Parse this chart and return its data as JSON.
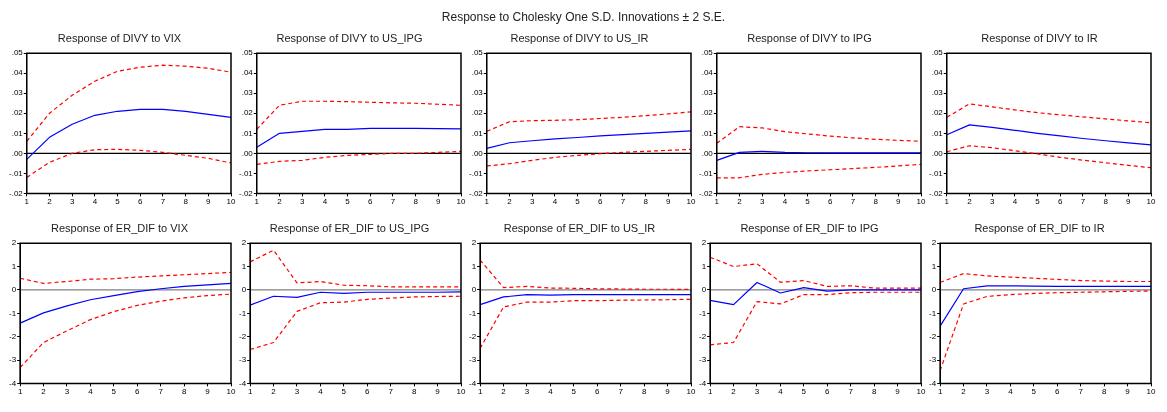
{
  "chart_data": [
    {
      "type": "line",
      "title": "Response of DIVY to VIX",
      "annotations": [
        "Response to Cholesky One S.D. Innovations ± 2 S.E."
      ],
      "categories": [
        "1",
        "2",
        "3",
        "4",
        "5",
        "6",
        "7",
        "8",
        "9",
        "10"
      ],
      "ylim": [
        -0.02,
        0.05
      ],
      "yticks": [
        {
          "value": -0.02,
          "label": "-.02"
        },
        {
          "value": -0.01,
          "label": "-.01"
        },
        {
          "value": 0,
          "label": ".00"
        },
        {
          "value": 0.01,
          "label": ".01"
        },
        {
          "value": 0.02,
          "label": ".02"
        },
        {
          "value": 0.03,
          "label": ".03"
        },
        {
          "value": 0.04,
          "label": ".04"
        },
        {
          "value": 0.05,
          "label": ".05"
        }
      ],
      "grid": false,
      "legend": false,
      "marker": "none",
      "ref_lines": [
        {
          "axis": "y",
          "value": 0,
          "color": "#000000"
        }
      ],
      "series": [
        {
          "color": "#0000ff",
          "line_style": "solid",
          "values": [
            -0.003,
            0.008,
            0.0145,
            0.019,
            0.021,
            0.022,
            0.022,
            0.021,
            0.0195,
            0.018
          ]
        },
        {
          "color": "#ff0000",
          "line_style": "dashed",
          "values": [
            0.006,
            0.02,
            0.029,
            0.036,
            0.041,
            0.043,
            0.044,
            0.0435,
            0.0425,
            0.0405
          ]
        },
        {
          "color": "#ff0000",
          "line_style": "dashed",
          "values": [
            -0.012,
            -0.0045,
            0.0,
            0.0018,
            0.002,
            0.0015,
            0.0005,
            -0.001,
            -0.0025,
            -0.0048
          ]
        }
      ]
    },
    {
      "type": "line",
      "title": "Response of DIVY to US_IPG",
      "categories": [
        "1",
        "2",
        "3",
        "4",
        "5",
        "6",
        "7",
        "8",
        "9",
        "10"
      ],
      "ylim": [
        -0.02,
        0.05
      ],
      "yticks": [
        {
          "value": -0.02,
          "label": "-.02"
        },
        {
          "value": -0.01,
          "label": "-.01"
        },
        {
          "value": 0,
          "label": ".00"
        },
        {
          "value": 0.01,
          "label": ".01"
        },
        {
          "value": 0.02,
          "label": ".02"
        },
        {
          "value": 0.03,
          "label": ".03"
        },
        {
          "value": 0.04,
          "label": ".04"
        },
        {
          "value": 0.05,
          "label": ".05"
        }
      ],
      "grid": false,
      "legend": false,
      "marker": "none",
      "ref_lines": [
        {
          "axis": "y",
          "value": 0,
          "color": "#000000"
        }
      ],
      "series": [
        {
          "color": "#0000ff",
          "line_style": "solid",
          "values": [
            0.003,
            0.01,
            0.011,
            0.012,
            0.012,
            0.0125,
            0.0125,
            0.0125,
            0.0123,
            0.0122
          ]
        },
        {
          "color": "#ff0000",
          "line_style": "dashed",
          "values": [
            0.012,
            0.024,
            0.026,
            0.026,
            0.0258,
            0.0255,
            0.0252,
            0.025,
            0.0245,
            0.024
          ]
        },
        {
          "color": "#ff0000",
          "line_style": "dashed",
          "values": [
            -0.0055,
            -0.004,
            -0.0035,
            -0.002,
            -0.001,
            -0.0005,
            0.0,
            0.0,
            0.0005,
            0.001
          ]
        }
      ]
    },
    {
      "type": "line",
      "title": "Response of DIVY to US_IR",
      "categories": [
        "1",
        "2",
        "3",
        "4",
        "5",
        "6",
        "7",
        "8",
        "9",
        "10"
      ],
      "ylim": [
        -0.02,
        0.05
      ],
      "yticks": [
        {
          "value": -0.02,
          "label": "-.02"
        },
        {
          "value": -0.01,
          "label": "-.01"
        },
        {
          "value": 0,
          "label": ".00"
        },
        {
          "value": 0.01,
          "label": ".01"
        },
        {
          "value": 0.02,
          "label": ".02"
        },
        {
          "value": 0.03,
          "label": ".03"
        },
        {
          "value": 0.04,
          "label": ".04"
        },
        {
          "value": 0.05,
          "label": ".05"
        }
      ],
      "grid": false,
      "legend": false,
      "marker": "none",
      "ref_lines": [
        {
          "axis": "y",
          "value": 0,
          "color": "#000000"
        }
      ],
      "series": [
        {
          "color": "#0000ff",
          "line_style": "solid",
          "values": [
            0.0025,
            0.0053,
            0.0063,
            0.0072,
            0.0079,
            0.0087,
            0.0093,
            0.01,
            0.0106,
            0.0112
          ]
        },
        {
          "color": "#ff0000",
          "line_style": "dashed",
          "values": [
            0.011,
            0.0158,
            0.0163,
            0.0165,
            0.0168,
            0.0174,
            0.018,
            0.0188,
            0.0197,
            0.0207
          ]
        },
        {
          "color": "#ff0000",
          "line_style": "dashed",
          "values": [
            -0.0063,
            -0.0052,
            -0.0035,
            -0.002,
            -0.001,
            -0.0002,
            0.0005,
            0.001,
            0.0015,
            0.002
          ]
        }
      ]
    },
    {
      "type": "line",
      "title": "Response of DIVY to IPG",
      "categories": [
        "1",
        "2",
        "3",
        "4",
        "5",
        "6",
        "7",
        "8",
        "9",
        "10"
      ],
      "ylim": [
        -0.02,
        0.05
      ],
      "yticks": [
        {
          "value": -0.02,
          "label": "-.02"
        },
        {
          "value": -0.01,
          "label": "-.01"
        },
        {
          "value": 0,
          "label": ".00"
        },
        {
          "value": 0.01,
          "label": ".01"
        },
        {
          "value": 0.02,
          "label": ".02"
        },
        {
          "value": 0.03,
          "label": ".03"
        },
        {
          "value": 0.04,
          "label": ".04"
        },
        {
          "value": 0.05,
          "label": ".05"
        }
      ],
      "grid": false,
      "legend": false,
      "marker": "none",
      "ref_lines": [
        {
          "axis": "y",
          "value": 0,
          "color": "#000000"
        }
      ],
      "series": [
        {
          "color": "#0000ff",
          "line_style": "solid",
          "values": [
            -0.0035,
            0.0005,
            0.001,
            0.0005,
            0.0003,
            0.0002,
            0.0002,
            0.0002,
            0.0002,
            0.0002
          ]
        },
        {
          "color": "#ff0000",
          "line_style": "dashed",
          "values": [
            0.005,
            0.0133,
            0.0127,
            0.0108,
            0.0097,
            0.0086,
            0.0077,
            0.007,
            0.0065,
            0.006
          ]
        },
        {
          "color": "#ff0000",
          "line_style": "dashed",
          "values": [
            -0.0122,
            -0.0122,
            -0.0105,
            -0.0095,
            -0.0088,
            -0.0082,
            -0.0076,
            -0.007,
            -0.0063,
            -0.0055
          ]
        }
      ]
    },
    {
      "type": "line",
      "title": "Response of DIVY to IR",
      "categories": [
        "1",
        "2",
        "3",
        "4",
        "5",
        "6",
        "7",
        "8",
        "9",
        "10"
      ],
      "ylim": [
        -0.02,
        0.05
      ],
      "yticks": [
        {
          "value": -0.02,
          "label": "-.02"
        },
        {
          "value": -0.01,
          "label": "-.01"
        },
        {
          "value": 0,
          "label": ".00"
        },
        {
          "value": 0.01,
          "label": ".01"
        },
        {
          "value": 0.02,
          "label": ".02"
        },
        {
          "value": 0.03,
          "label": ".03"
        },
        {
          "value": 0.04,
          "label": ".04"
        },
        {
          "value": 0.05,
          "label": ".05"
        }
      ],
      "grid": false,
      "legend": false,
      "marker": "none",
      "ref_lines": [
        {
          "axis": "y",
          "value": 0,
          "color": "#000000"
        }
      ],
      "series": [
        {
          "color": "#0000ff",
          "line_style": "solid",
          "values": [
            0.0093,
            0.0142,
            0.013,
            0.0115,
            0.01,
            0.0087,
            0.0074,
            0.0063,
            0.0052,
            0.0042
          ]
        },
        {
          "color": "#ff0000",
          "line_style": "dashed",
          "values": [
            0.018,
            0.0247,
            0.0232,
            0.0217,
            0.0203,
            0.0192,
            0.0182,
            0.0172,
            0.0162,
            0.0153
          ]
        },
        {
          "color": "#ff0000",
          "line_style": "dashed",
          "values": [
            0.0008,
            0.0038,
            0.0028,
            0.0013,
            -0.0003,
            -0.002,
            -0.0034,
            -0.0047,
            -0.006,
            -0.0072
          ]
        }
      ]
    },
    {
      "type": "line",
      "title": "Response of ER_DIF to VIX",
      "categories": [
        "1",
        "2",
        "3",
        "4",
        "5",
        "6",
        "7",
        "8",
        "9",
        "10"
      ],
      "ylim": [
        -4,
        2
      ],
      "yticks": [
        -4,
        -3,
        -2,
        -1,
        0,
        1,
        2
      ],
      "grid": false,
      "legend": false,
      "marker": "none",
      "ref_lines": [
        {
          "axis": "y",
          "value": 0,
          "color": "#808080"
        }
      ],
      "series": [
        {
          "color": "#0000ff",
          "line_style": "solid",
          "values": [
            -1.42,
            -0.98,
            -0.68,
            -0.42,
            -0.24,
            -0.07,
            0.05,
            0.15,
            0.22,
            0.28
          ]
        },
        {
          "color": "#ff0000",
          "line_style": "dashed",
          "values": [
            0.5,
            0.28,
            0.36,
            0.46,
            0.48,
            0.55,
            0.6,
            0.65,
            0.7,
            0.75
          ]
        },
        {
          "color": "#ff0000",
          "line_style": "dashed",
          "values": [
            -3.32,
            -2.25,
            -1.75,
            -1.27,
            -0.93,
            -0.66,
            -0.48,
            -0.34,
            -0.24,
            -0.18
          ]
        }
      ]
    },
    {
      "type": "line",
      "title": "Response of ER_DIF to US_IPG",
      "categories": [
        "1",
        "2",
        "3",
        "4",
        "5",
        "6",
        "7",
        "8",
        "9",
        "10"
      ],
      "ylim": [
        -4,
        2
      ],
      "yticks": [
        -4,
        -3,
        -2,
        -1,
        0,
        1,
        2
      ],
      "grid": false,
      "legend": false,
      "marker": "none",
      "ref_lines": [
        {
          "axis": "y",
          "value": 0,
          "color": "#808080"
        }
      ],
      "series": [
        {
          "color": "#0000ff",
          "line_style": "solid",
          "values": [
            -0.65,
            -0.27,
            -0.32,
            -0.1,
            -0.15,
            -0.1,
            -0.1,
            -0.1,
            -0.1,
            -0.08
          ]
        },
        {
          "color": "#ff0000",
          "line_style": "dashed",
          "values": [
            1.2,
            1.7,
            0.3,
            0.36,
            0.2,
            0.18,
            0.13,
            0.13,
            0.13,
            0.13
          ]
        },
        {
          "color": "#ff0000",
          "line_style": "dashed",
          "values": [
            -2.55,
            -2.25,
            -0.92,
            -0.55,
            -0.52,
            -0.4,
            -0.35,
            -0.3,
            -0.28,
            -0.27
          ]
        }
      ]
    },
    {
      "type": "line",
      "title": "Response of ER_DIF to US_IR",
      "categories": [
        "1",
        "2",
        "3",
        "4",
        "5",
        "6",
        "7",
        "8",
        "9",
        "10"
      ],
      "ylim": [
        -4,
        2
      ],
      "yticks": [
        -4,
        -3,
        -2,
        -1,
        0,
        1,
        2
      ],
      "grid": false,
      "legend": false,
      "marker": "none",
      "ref_lines": [
        {
          "axis": "y",
          "value": 0,
          "color": "#808080"
        }
      ],
      "series": [
        {
          "color": "#0000ff",
          "line_style": "solid",
          "values": [
            -0.63,
            -0.3,
            -0.2,
            -0.22,
            -0.2,
            -0.2,
            -0.2,
            -0.2,
            -0.2,
            -0.2
          ]
        },
        {
          "color": "#ff0000",
          "line_style": "dashed",
          "values": [
            1.28,
            0.1,
            0.15,
            0.08,
            0.07,
            0.05,
            0.04,
            0.03,
            0.03,
            0.02
          ]
        },
        {
          "color": "#ff0000",
          "line_style": "dashed",
          "values": [
            -2.5,
            -0.73,
            -0.52,
            -0.52,
            -0.46,
            -0.46,
            -0.44,
            -0.43,
            -0.42,
            -0.4
          ]
        }
      ]
    },
    {
      "type": "line",
      "title": "Response of ER_DIF to IPG",
      "categories": [
        "1",
        "2",
        "3",
        "4",
        "5",
        "6",
        "7",
        "8",
        "9",
        "10"
      ],
      "ylim": [
        -4,
        2
      ],
      "yticks": [
        -4,
        -3,
        -2,
        -1,
        0,
        1,
        2
      ],
      "grid": false,
      "legend": false,
      "marker": "none",
      "ref_lines": [
        {
          "axis": "y",
          "value": 0,
          "color": "#808080"
        }
      ],
      "series": [
        {
          "color": "#0000ff",
          "line_style": "solid",
          "values": [
            -0.45,
            -0.63,
            0.32,
            -0.13,
            0.1,
            -0.05,
            0.0,
            0.0,
            0.0,
            0.0
          ]
        },
        {
          "color": "#ff0000",
          "line_style": "dashed",
          "values": [
            1.4,
            1.0,
            1.12,
            0.33,
            0.4,
            0.15,
            0.18,
            0.08,
            0.08,
            0.08
          ]
        },
        {
          "color": "#ff0000",
          "line_style": "dashed",
          "values": [
            -2.35,
            -2.25,
            -0.5,
            -0.6,
            -0.2,
            -0.2,
            -0.12,
            -0.1,
            -0.1,
            -0.1
          ]
        }
      ]
    },
    {
      "type": "line",
      "title": "Response of ER_DIF to IR",
      "categories": [
        "1",
        "2",
        "3",
        "4",
        "5",
        "6",
        "7",
        "8",
        "9",
        "10"
      ],
      "ylim": [
        -4,
        2
      ],
      "yticks": [
        -4,
        -3,
        -2,
        -1,
        0,
        1,
        2
      ],
      "grid": false,
      "legend": false,
      "marker": "none",
      "ref_lines": [
        {
          "axis": "y",
          "value": 0,
          "color": "#808080"
        }
      ],
      "series": [
        {
          "color": "#0000ff",
          "line_style": "solid",
          "values": [
            -1.55,
            0.05,
            0.17,
            0.18,
            0.16,
            0.15,
            0.15,
            0.15,
            0.15,
            0.15
          ]
        },
        {
          "color": "#ff0000",
          "line_style": "dashed",
          "values": [
            0.32,
            0.7,
            0.6,
            0.55,
            0.5,
            0.45,
            0.4,
            0.38,
            0.36,
            0.36
          ]
        },
        {
          "color": "#ff0000",
          "line_style": "dashed",
          "values": [
            -3.45,
            -0.6,
            -0.28,
            -0.2,
            -0.15,
            -0.12,
            -0.1,
            -0.08,
            -0.06,
            -0.05
          ]
        }
      ]
    }
  ]
}
